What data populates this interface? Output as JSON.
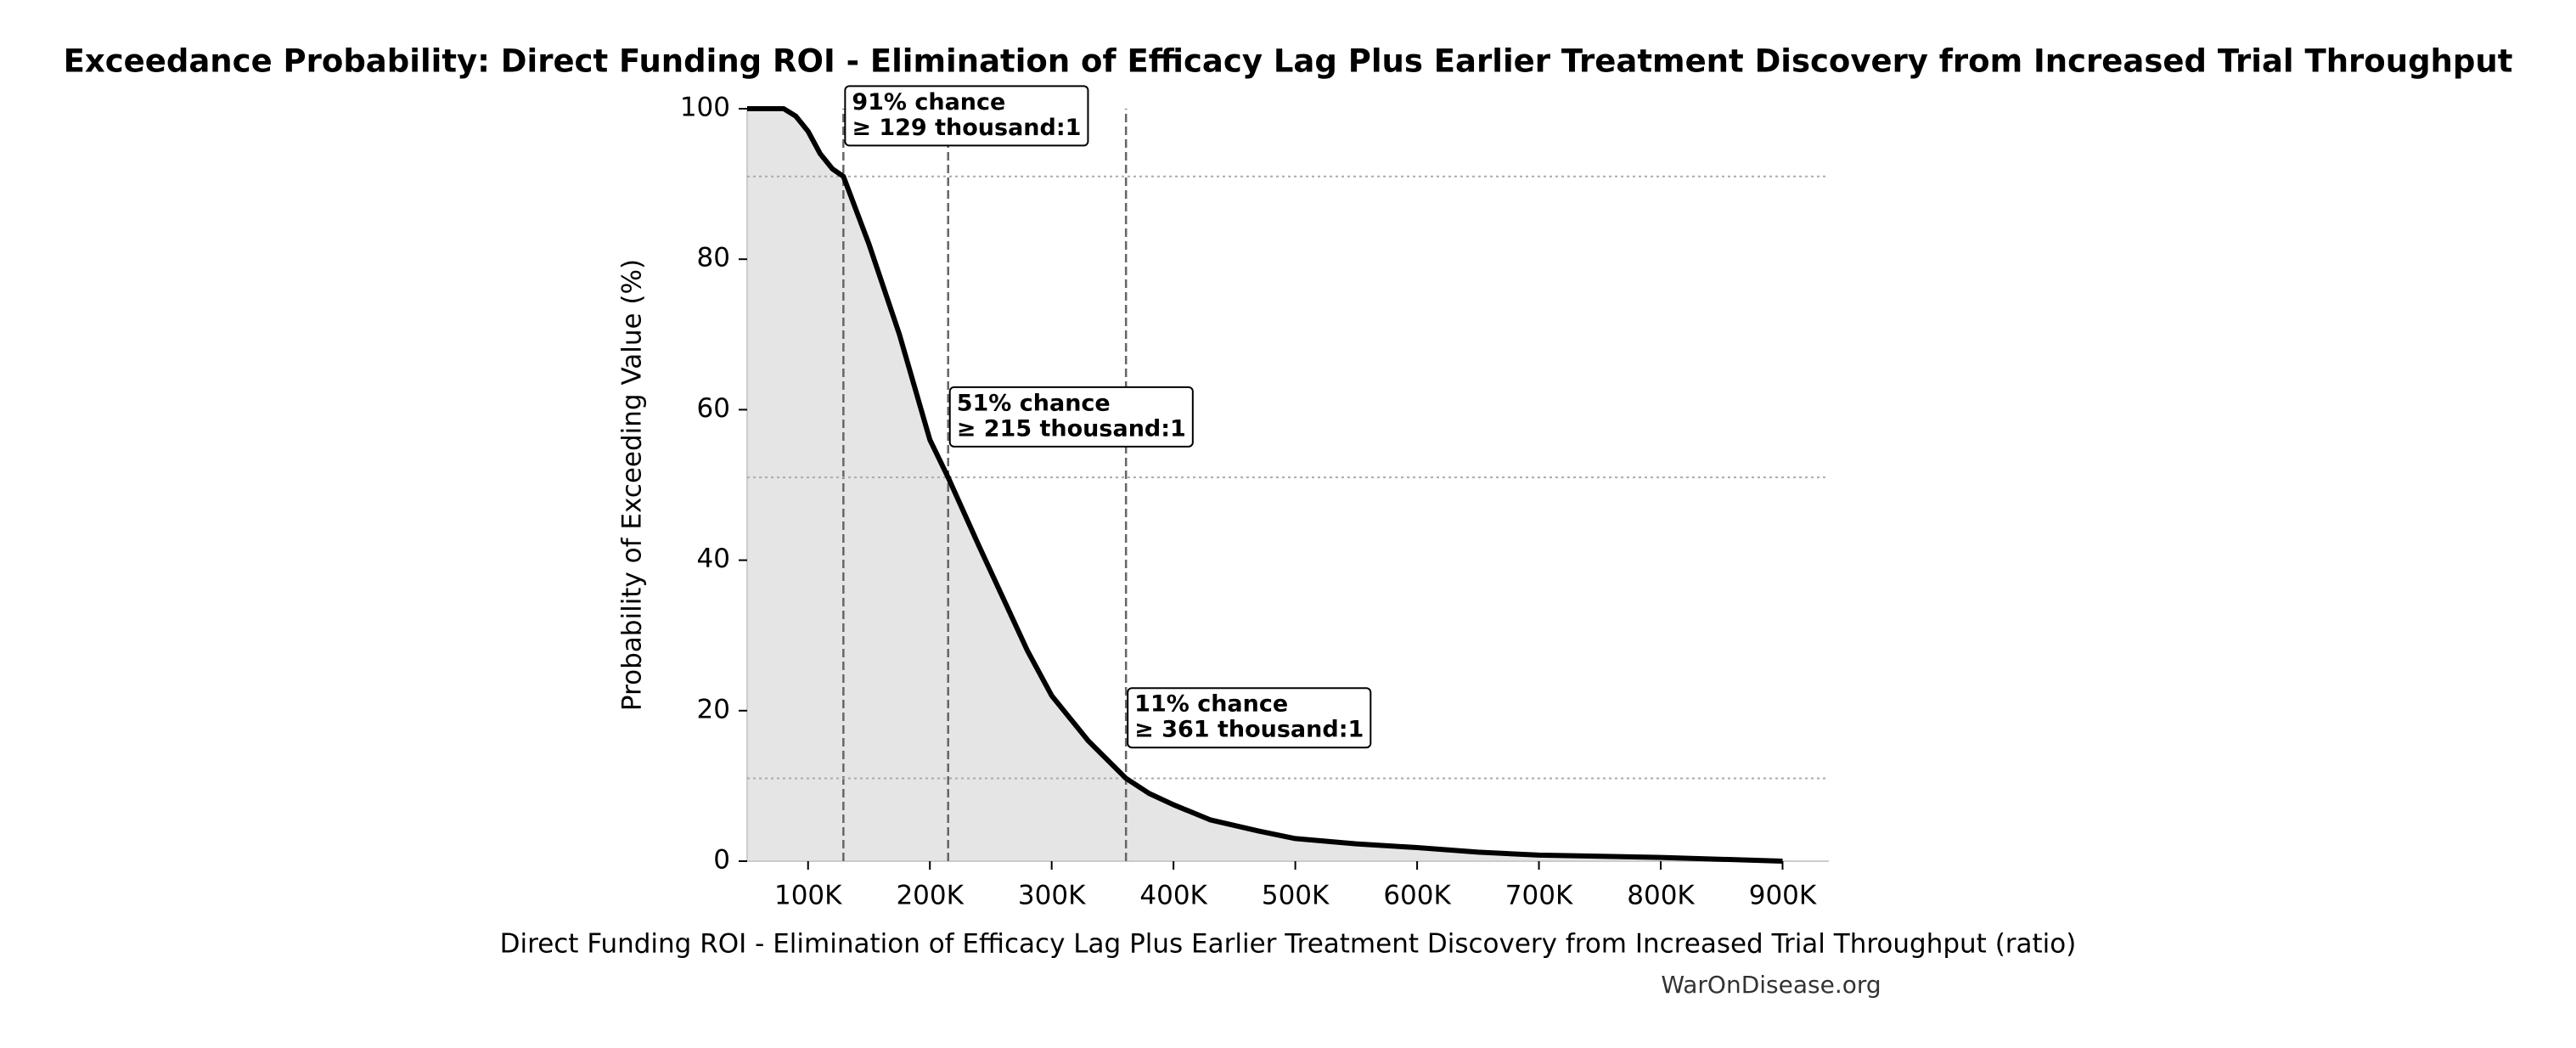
{
  "chart_data": {
    "type": "line",
    "title": "Exceedance Probability: Direct Funding ROI - Elimination of Efficacy Lag Plus Earlier Treatment Discovery from Increased Trial Throughput",
    "x_label": "Direct Funding ROI - Elimination of Efficacy Lag Plus Earlier Treatment Discovery from Increased Trial Throughput (ratio)",
    "y_label": "Probability of Exceeding Value (%)",
    "watermark": "WarOnDisease.org",
    "x": [
      50000,
      80000,
      90000,
      100000,
      110000,
      120000,
      129000,
      150000,
      175000,
      200000,
      215000,
      240000,
      260000,
      280000,
      300000,
      330000,
      361000,
      380000,
      400000,
      430000,
      470000,
      500000,
      550000,
      600000,
      650000,
      700000,
      800000,
      900000
    ],
    "values": [
      100,
      100,
      99,
      97,
      94,
      92,
      91,
      82,
      70,
      56,
      51,
      42,
      35,
      28,
      22,
      16,
      11,
      9,
      7.5,
      5.5,
      4,
      3,
      2.3,
      1.8,
      1.2,
      0.8,
      0.5,
      0
    ],
    "color": "#000000",
    "fill_color": "#e5e5e5",
    "xlim": [
      50000,
      938000
    ],
    "ylim": [
      0,
      100
    ],
    "xticks": [
      {
        "value": 100000,
        "label": "100K"
      },
      {
        "value": 200000,
        "label": "200K"
      },
      {
        "value": 300000,
        "label": "300K"
      },
      {
        "value": 400000,
        "label": "400K"
      },
      {
        "value": 500000,
        "label": "500K"
      },
      {
        "value": 600000,
        "label": "600K"
      },
      {
        "value": 700000,
        "label": "700K"
      },
      {
        "value": 800000,
        "label": "800K"
      },
      {
        "value": 900000,
        "label": "900K"
      }
    ],
    "yticks": [
      0,
      20,
      40,
      60,
      80,
      100
    ],
    "annotations": [
      {
        "x": 129000,
        "y": 91,
        "lines": [
          "91% chance",
          "≥ 129 thousand:1"
        ]
      },
      {
        "x": 215000,
        "y": 51,
        "lines": [
          "51% chance",
          "≥ 215 thousand:1"
        ]
      },
      {
        "x": 361000,
        "y": 11,
        "lines": [
          "11% chance",
          "≥ 361 thousand:1"
        ]
      }
    ]
  }
}
